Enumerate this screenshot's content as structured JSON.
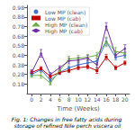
{
  "chart_data": {
    "type": "line",
    "xlabel": "Time (Weeks)",
    "caption": "Fig. 1: Changes in free fatty acids during storage of refined Nile perch viscera oil",
    "x": [
      0,
      2,
      4,
      6,
      8,
      10,
      12,
      14,
      16,
      18,
      20
    ],
    "series": [
      {
        "name": "Low MP (clean)",
        "color": "#4472c4",
        "marker": "circle",
        "values": [
          0.28,
          0.33,
          0.22,
          0.3,
          0.35,
          0.38,
          0.4,
          0.42,
          0.62,
          0.46,
          0.48
        ],
        "errors": [
          0.02,
          0.02,
          0.02,
          0.02,
          0.02,
          0.03,
          0.03,
          0.03,
          0.04,
          0.03,
          0.03
        ]
      },
      {
        "name": "Low MP (cab)",
        "color": "#c00000",
        "marker": "square",
        "values": [
          0.3,
          0.34,
          0.26,
          0.3,
          0.32,
          0.35,
          0.36,
          0.32,
          0.46,
          0.35,
          0.4
        ],
        "errors": [
          0.02,
          0.02,
          0.02,
          0.02,
          0.02,
          0.02,
          0.02,
          0.03,
          0.03,
          0.02,
          0.02
        ]
      },
      {
        "name": "High MP (clean)",
        "color": "#70ad47",
        "marker": "triangle",
        "values": [
          0.27,
          0.27,
          0.19,
          0.32,
          0.44,
          0.45,
          0.46,
          0.48,
          0.62,
          0.52,
          0.5
        ],
        "errors": [
          0.02,
          0.03,
          0.02,
          0.02,
          0.03,
          0.03,
          0.03,
          0.03,
          0.05,
          0.04,
          0.04
        ]
      },
      {
        "name": "High MP (cab)",
        "color": "#7030a0",
        "marker": "diamond",
        "values": [
          0.3,
          0.5,
          0.28,
          0.35,
          0.42,
          0.43,
          0.45,
          0.38,
          0.78,
          0.48,
          0.55
        ],
        "errors": [
          0.03,
          0.04,
          0.02,
          0.02,
          0.03,
          0.03,
          0.03,
          0.03,
          0.04,
          0.03,
          0.04
        ]
      }
    ],
    "xlim": [
      -1,
      21
    ],
    "xticks": [
      0,
      2,
      4,
      6,
      8,
      10,
      12,
      14,
      16,
      18,
      20
    ],
    "ylim": [
      0.08,
      1.0
    ],
    "yticks": [
      0.18,
      0.28,
      0.38,
      0.48,
      0.58,
      0.68,
      0.78,
      0.88,
      0.98
    ],
    "legend": "upper left",
    "grid": false
  }
}
